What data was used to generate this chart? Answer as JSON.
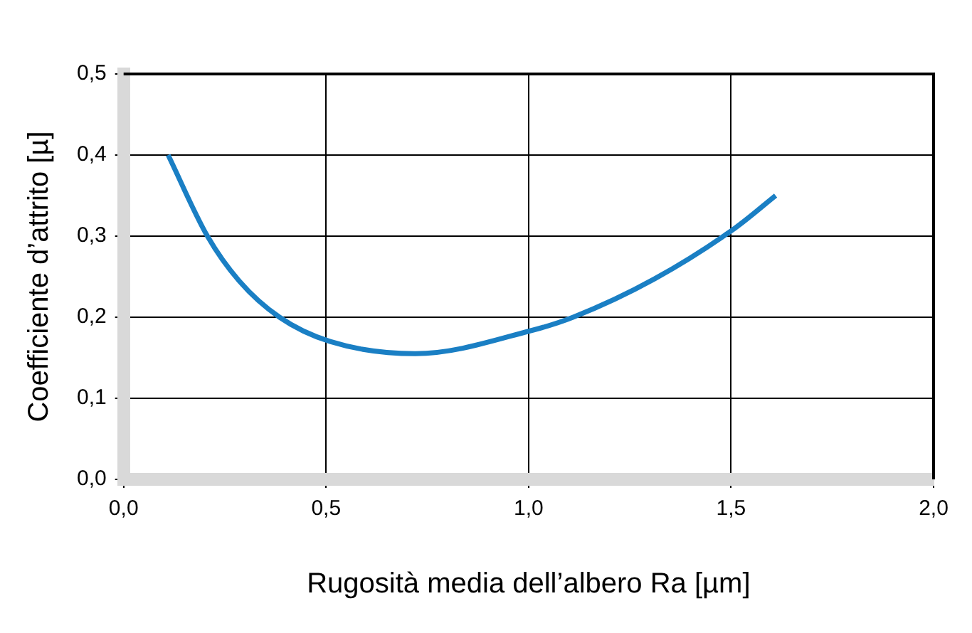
{
  "chart_data": {
    "type": "line",
    "xlabel": "Rugosità media dell’albero Ra [µm]",
    "ylabel": "Coefficiente d’attrito [µ]",
    "x": [
      0.11,
      0.207,
      0.285,
      0.385,
      0.51,
      0.72,
      1.01,
      1.11,
      1.31,
      1.51,
      1.61
    ],
    "series": [
      {
        "color": "#1a7fc4",
        "values": [
          0.4,
          0.3,
          0.245,
          0.2,
          0.17,
          0.155,
          0.184,
          0.2,
          0.247,
          0.31,
          0.35
        ]
      }
    ],
    "xlim": [
      0,
      2
    ],
    "xticks": [
      {
        "value": 0,
        "label": "0,0"
      },
      {
        "value": 0.5,
        "label": "0,5"
      },
      {
        "value": 1,
        "label": "1,0"
      },
      {
        "value": 1.5,
        "label": "1,5"
      },
      {
        "value": 2,
        "label": "2,0"
      }
    ],
    "ylim": [
      0,
      0.5
    ],
    "yticks": [
      {
        "value": 0,
        "label": "0,0"
      },
      {
        "value": 0.1,
        "label": "0,1"
      },
      {
        "value": 0.2,
        "label": "0,2"
      },
      {
        "value": 0.3,
        "label": "0,3"
      },
      {
        "value": 0.4,
        "label": "0,4"
      },
      {
        "value": 0.5,
        "label": "0,5"
      }
    ],
    "grid": true,
    "legend": false,
    "marker": "none",
    "line_style": "solid"
  }
}
